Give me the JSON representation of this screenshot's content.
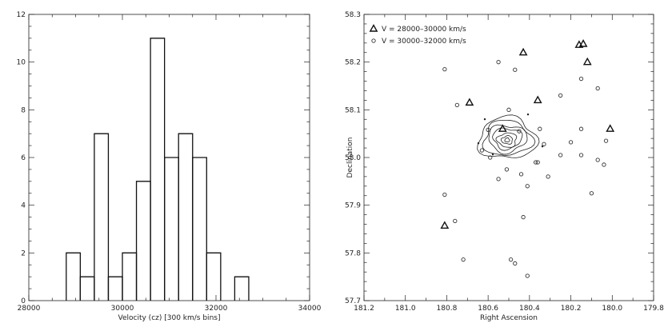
{
  "chart_data": [
    {
      "type": "bar",
      "subtype": "histogram",
      "xlabel": "Velocity (cz) [300 km/s bins]",
      "ylabel": "",
      "xlim": [
        28000,
        34000
      ],
      "ylim": [
        0,
        12
      ],
      "xticks": [
        "28000",
        "30000",
        "32000",
        "34000"
      ],
      "yticks": [
        "0",
        "2",
        "4",
        "6",
        "8",
        "10",
        "12"
      ],
      "bin_width": 300,
      "bins": [
        {
          "start": 28800,
          "count": 2
        },
        {
          "start": 29100,
          "count": 1
        },
        {
          "start": 29400,
          "count": 7
        },
        {
          "start": 29700,
          "count": 1
        },
        {
          "start": 30000,
          "count": 2
        },
        {
          "start": 30300,
          "count": 5
        },
        {
          "start": 30600,
          "count": 11
        },
        {
          "start": 30900,
          "count": 6
        },
        {
          "start": 31200,
          "count": 7
        },
        {
          "start": 31500,
          "count": 6
        },
        {
          "start": 31800,
          "count": 2
        },
        {
          "start": 32100,
          "count": 0
        },
        {
          "start": 32400,
          "count": 1
        }
      ]
    },
    {
      "type": "scatter",
      "xlabel": "Right Ascension",
      "ylabel": "Declination",
      "xlim": [
        181.2,
        179.8
      ],
      "ylim": [
        57.7,
        58.3
      ],
      "xticks": [
        "181.2",
        "181.0",
        "180.8",
        "180.6",
        "180.4",
        "180.2",
        "180.0",
        "179.8"
      ],
      "yticks": [
        "57.7",
        "57.8",
        "57.9",
        "58.0",
        "58.1",
        "58.2",
        "58.3"
      ],
      "legend_position": "top-left",
      "series": [
        {
          "name": "V = 28000–30000 km/s",
          "marker": "triangle",
          "points": [
            [
              180.14,
              58.238
            ],
            [
              180.16,
              58.236
            ],
            [
              180.12,
              58.2
            ],
            [
              180.43,
              58.22
            ],
            [
              180.36,
              58.12
            ],
            [
              180.69,
              58.115
            ],
            [
              180.53,
              58.06
            ],
            [
              180.01,
              58.06
            ],
            [
              180.81,
              57.857
            ]
          ]
        },
        {
          "name": "V = 30000–32000 km/s",
          "marker": "circle",
          "points": [
            [
              180.81,
              58.185
            ],
            [
              180.55,
              58.2
            ],
            [
              180.47,
              58.184
            ],
            [
              180.15,
              58.165
            ],
            [
              180.75,
              58.11
            ],
            [
              180.5,
              58.1
            ],
            [
              180.25,
              58.13
            ],
            [
              180.07,
              58.145
            ],
            [
              180.6,
              58.058
            ],
            [
              180.45,
              58.055
            ],
            [
              180.35,
              58.06
            ],
            [
              180.15,
              58.06
            ],
            [
              180.2,
              58.032
            ],
            [
              180.33,
              58.028
            ],
            [
              180.25,
              58.005
            ],
            [
              180.15,
              58.005
            ],
            [
              180.36,
              57.99
            ],
            [
              180.03,
              58.035
            ],
            [
              180.07,
              57.995
            ],
            [
              180.04,
              57.985
            ],
            [
              180.63,
              58.015
            ],
            [
              180.59,
              58.0
            ],
            [
              180.51,
              57.975
            ],
            [
              180.44,
              57.965
            ],
            [
              180.55,
              57.955
            ],
            [
              180.41,
              57.94
            ],
            [
              180.1,
              57.925
            ],
            [
              180.81,
              57.922
            ],
            [
              180.76,
              57.867
            ],
            [
              180.43,
              57.875
            ],
            [
              180.72,
              57.786
            ],
            [
              180.49,
              57.786
            ],
            [
              180.47,
              57.778
            ],
            [
              180.41,
              57.752
            ],
            [
              180.37,
              57.99
            ],
            [
              180.31,
              57.96
            ]
          ]
        }
      ],
      "contour_center": [
        180.5,
        58.04
      ]
    }
  ]
}
